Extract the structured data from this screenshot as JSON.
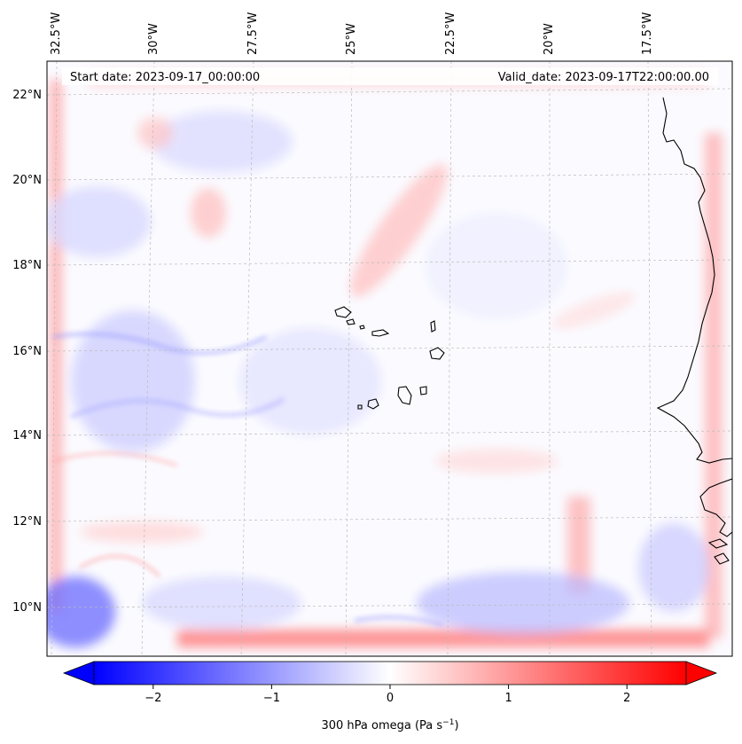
{
  "map": {
    "start_date": "Start date: 2023-09-17_00:00:00",
    "valid_date": "Valid_date: 2023-09-17T22:00:00.00",
    "lon_labels": [
      "32.5°W",
      "30°W",
      "27.5°W",
      "25°W",
      "22.5°W",
      "20°W",
      "17.5°W"
    ],
    "lat_labels": [
      "22°N",
      "20°N",
      "18°N",
      "16°N",
      "14°N",
      "12°N",
      "10°N"
    ],
    "colors": {
      "negative": "#0000ff",
      "zero": "#ffffff",
      "positive": "#ff0000",
      "coastline": "#000000",
      "gridline": "#bbbbbb"
    }
  },
  "colorbar": {
    "ticks": [
      "−2",
      "−1",
      "0",
      "1",
      "2"
    ],
    "tick_values": [
      -2,
      -1,
      0,
      1,
      2
    ],
    "range": [
      -2.5,
      2.5
    ],
    "label": "300 hPa omega (Pa s",
    "label_exp": "−1",
    "label_end": ")"
  }
}
